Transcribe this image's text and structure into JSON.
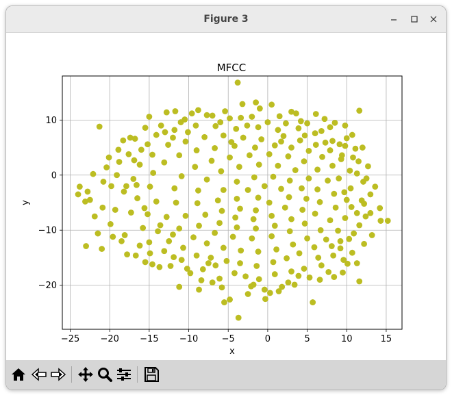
{
  "window": {
    "title": "Figure 3"
  },
  "toolbar": {
    "tools": [
      "home-icon",
      "back-icon",
      "forward-icon",
      "pan-icon",
      "zoom-icon",
      "configure-subplots-icon",
      "save-icon"
    ]
  },
  "colors": {
    "points": "#bcbd22",
    "grid": "#b0b0b0",
    "titlebar": "#ebebeb",
    "toolbar": "#d6d6d6"
  },
  "chart_data": {
    "type": "scatter",
    "title": "MFCC",
    "xlabel": "x",
    "ylabel": "y",
    "xlim": [
      -26,
      17
    ],
    "ylim": [
      -28,
      18
    ],
    "xticks": [
      -25,
      -20,
      -15,
      -10,
      -5,
      0,
      5,
      10,
      15
    ],
    "yticks": [
      -20,
      -10,
      0,
      10
    ],
    "grid": true,
    "series": [
      {
        "color": "#bcbd22",
        "points": [
          [
            -3.8,
            16.8
          ],
          [
            -21.3,
            8.8
          ],
          [
            11.6,
            11.7
          ],
          [
            -11.7,
            11.6
          ],
          [
            -12.8,
            11.4
          ],
          [
            -8.8,
            11.8
          ],
          [
            -3.2,
            12.9
          ],
          [
            -1.5,
            13.2
          ],
          [
            0.5,
            12.8
          ],
          [
            3.6,
            11.2
          ],
          [
            6.1,
            11.1
          ],
          [
            -15.5,
            8.6
          ],
          [
            -13.5,
            9.0
          ],
          [
            -10.5,
            10.1
          ],
          [
            -7.0,
            10.8
          ],
          [
            -4.8,
            10.3
          ],
          [
            -2.0,
            10.6
          ],
          [
            1.5,
            10.7
          ],
          [
            4.2,
            9.8
          ],
          [
            8.5,
            9.5
          ],
          [
            10.7,
            7.3
          ],
          [
            -16.8,
            6.6
          ],
          [
            -20.4,
            1.4
          ],
          [
            -23.8,
            -2.1
          ],
          [
            -24.0,
            -3.5
          ],
          [
            -23.1,
            -4.8
          ],
          [
            -22.5,
            -4.5
          ],
          [
            -20.8,
            -1.2
          ],
          [
            -19.8,
            -2.0
          ],
          [
            -21.9,
            -7.5
          ],
          [
            -21.5,
            -10.6
          ],
          [
            -23.0,
            -12.9
          ],
          [
            -21.0,
            -13.4
          ],
          [
            -19.6,
            -11.2
          ],
          [
            -18.5,
            -12.0
          ],
          [
            -17.8,
            -14.4
          ],
          [
            -16.7,
            -14.6
          ],
          [
            -15.5,
            -15.8
          ],
          [
            -14.6,
            -16.2
          ],
          [
            -13.7,
            -16.7
          ],
          [
            -12.3,
            -16.5
          ],
          [
            -10.2,
            -17.0
          ],
          [
            -9.8,
            -17.8
          ],
          [
            -11.2,
            -20.3
          ],
          [
            -8.7,
            -20.8
          ],
          [
            -7.0,
            -19.5
          ],
          [
            -5.8,
            -20.4
          ],
          [
            -4.8,
            -22.6
          ],
          [
            -5.5,
            -23.1
          ],
          [
            -3.7,
            -25.9
          ],
          [
            -2.1,
            -20.2
          ],
          [
            -0.4,
            -20.8
          ],
          [
            -0.3,
            -22.5
          ],
          [
            0.3,
            -21.4
          ],
          [
            1.4,
            -21.1
          ],
          [
            2.6,
            -19.5
          ],
          [
            3.4,
            -19.9
          ],
          [
            5.7,
            -23.1
          ],
          [
            6.6,
            -19.0
          ],
          [
            8.4,
            -18.5
          ],
          [
            9.5,
            -17.7
          ],
          [
            11.6,
            -19.3
          ],
          [
            10.7,
            -14.1
          ],
          [
            11.3,
            -16.0
          ],
          [
            12.2,
            -12.5
          ],
          [
            13.2,
            -10.9
          ],
          [
            14.3,
            -8.3
          ],
          [
            15.2,
            -8.3
          ],
          [
            14.2,
            -6.0
          ],
          [
            13.0,
            -6.9
          ],
          [
            12.2,
            -5.2
          ],
          [
            13.0,
            -3.5
          ],
          [
            12.1,
            -1.2
          ],
          [
            11.3,
            0.3
          ],
          [
            11.5,
            2.5
          ],
          [
            10.8,
            3.2
          ],
          [
            9.8,
            5.3
          ],
          [
            9.1,
            5.6
          ],
          [
            6.8,
            8.0
          ],
          [
            3.9,
            8.5
          ],
          [
            1.3,
            8.2
          ],
          [
            -1.2,
            8.7
          ],
          [
            -4.0,
            8.4
          ],
          [
            -6.6,
            8.9
          ],
          [
            -9.1,
            9.0
          ],
          [
            -11.8,
            8.2
          ],
          [
            -14.1,
            7.3
          ],
          [
            -16.0,
            4.6
          ],
          [
            -17.6,
            3.8
          ],
          [
            -18.8,
            2.4
          ],
          [
            -19.1,
            0.0
          ],
          [
            -18.2,
            -3.0
          ],
          [
            -17.3,
            -6.8
          ],
          [
            -15.8,
            -9.6
          ],
          [
            -15.0,
            -12.2
          ],
          [
            -13.1,
            -13.8
          ],
          [
            -11.9,
            -14.9
          ],
          [
            -10.9,
            -15.4
          ],
          [
            -8.2,
            -17.1
          ],
          [
            -6.6,
            -16.4
          ],
          [
            -4.2,
            -17.8
          ],
          [
            -2.8,
            -18.4
          ],
          [
            -1.1,
            -18.9
          ],
          [
            0.9,
            -18.0
          ],
          [
            3.0,
            -17.5
          ],
          [
            4.6,
            -17.0
          ],
          [
            6.8,
            -16.4
          ],
          [
            8.3,
            -14.6
          ],
          [
            9.2,
            -13.3
          ],
          [
            10.3,
            -11.6
          ],
          [
            11.6,
            -9.1
          ],
          [
            12.4,
            -7.5
          ],
          [
            11.9,
            -4.6
          ],
          [
            10.5,
            -2.4
          ],
          [
            10.4,
            0.8
          ],
          [
            9.3,
            2.9
          ],
          [
            7.9,
            4.5
          ],
          [
            6.1,
            5.5
          ],
          [
            4.1,
            6.3
          ],
          [
            2.0,
            7.1
          ],
          [
            -0.8,
            6.5
          ],
          [
            -3.1,
            6.8
          ],
          [
            -5.6,
            7.2
          ],
          [
            -8.0,
            6.9
          ],
          [
            -10.4,
            6.1
          ],
          [
            -12.6,
            5.5
          ],
          [
            -14.6,
            3.7
          ],
          [
            -16.2,
            1.9
          ],
          [
            -17.0,
            -0.7
          ],
          [
            -16.5,
            -4.2
          ],
          [
            -15.2,
            -7.1
          ],
          [
            -13.9,
            -10.2
          ],
          [
            -12.5,
            -12.0
          ],
          [
            -10.7,
            -13.2
          ],
          [
            -9.0,
            -14.6
          ],
          [
            -7.2,
            -15.0
          ],
          [
            -5.2,
            -15.6
          ],
          [
            -3.5,
            -16.0
          ],
          [
            -1.4,
            -16.5
          ],
          [
            0.7,
            -15.8
          ],
          [
            2.4,
            -15.1
          ],
          [
            4.0,
            -14.2
          ],
          [
            5.9,
            -13.1
          ],
          [
            7.4,
            -11.7
          ],
          [
            8.9,
            -10.1
          ],
          [
            9.8,
            -7.8
          ],
          [
            10.6,
            -5.8
          ],
          [
            9.7,
            -3.1
          ],
          [
            9.0,
            -0.6
          ],
          [
            8.2,
            1.7
          ],
          [
            6.9,
            3.3
          ],
          [
            5.2,
            4.4
          ],
          [
            3.0,
            5.0
          ],
          [
            0.9,
            5.4
          ],
          [
            -1.6,
            5.0
          ],
          [
            -4.2,
            5.3
          ],
          [
            -6.7,
            4.9
          ],
          [
            -9.0,
            4.5
          ],
          [
            -11.2,
            3.6
          ],
          [
            -13.1,
            2.3
          ],
          [
            -14.5,
            0.4
          ],
          [
            -14.9,
            -2.1
          ],
          [
            -14.1,
            -4.8
          ],
          [
            -12.8,
            -7.6
          ],
          [
            -11.2,
            -9.7
          ],
          [
            -9.4,
            -11.3
          ],
          [
            -7.7,
            -12.4
          ],
          [
            -5.6,
            -13.2
          ],
          [
            -3.4,
            -13.7
          ],
          [
            -1.2,
            -13.9
          ],
          [
            1.1,
            -13.5
          ],
          [
            3.2,
            -12.6
          ],
          [
            5.0,
            -11.5
          ],
          [
            6.7,
            -10.0
          ],
          [
            7.9,
            -8.2
          ],
          [
            8.6,
            -5.9
          ],
          [
            8.4,
            -3.4
          ],
          [
            7.6,
            -1.0
          ],
          [
            6.3,
            1.0
          ],
          [
            4.6,
            2.5
          ],
          [
            2.6,
            3.4
          ],
          [
            0.2,
            3.8
          ],
          [
            -2.3,
            3.6
          ],
          [
            -4.8,
            3.2
          ],
          [
            -7.1,
            2.6
          ],
          [
            -9.2,
            1.5
          ],
          [
            -10.9,
            -0.2
          ],
          [
            -11.8,
            -2.4
          ],
          [
            -11.6,
            -5.0
          ],
          [
            -10.4,
            -7.4
          ],
          [
            -8.7,
            -9.2
          ],
          [
            -6.7,
            -10.5
          ],
          [
            -4.4,
            -11.2
          ],
          [
            -2.0,
            -11.5
          ],
          [
            0.5,
            -11.1
          ],
          [
            2.8,
            -10.2
          ],
          [
            4.7,
            -8.8
          ],
          [
            6.0,
            -7.0
          ],
          [
            6.6,
            -4.9
          ],
          [
            6.3,
            -2.6
          ],
          [
            5.2,
            -0.6
          ],
          [
            3.5,
            0.9
          ],
          [
            1.3,
            1.7
          ],
          [
            -1.1,
            1.9
          ],
          [
            -3.6,
            1.5
          ],
          [
            -5.9,
            0.7
          ],
          [
            -7.7,
            -0.8
          ],
          [
            -8.8,
            -2.8
          ],
          [
            -8.9,
            -5.1
          ],
          [
            -7.9,
            -7.2
          ],
          [
            -6.1,
            -8.7
          ],
          [
            -3.9,
            -9.5
          ],
          [
            -1.5,
            -9.7
          ],
          [
            0.9,
            -9.2
          ],
          [
            3.0,
            -8.0
          ],
          [
            4.4,
            -6.3
          ],
          [
            4.9,
            -4.3
          ],
          [
            4.3,
            -2.4
          ],
          [
            2.8,
            -1.0
          ],
          [
            0.7,
            -0.3
          ],
          [
            -1.7,
            -0.4
          ],
          [
            -3.9,
            -1.2
          ],
          [
            -5.6,
            -2.7
          ],
          [
            -6.3,
            -4.6
          ],
          [
            -5.8,
            -6.5
          ],
          [
            -4.1,
            -7.7
          ],
          [
            -1.8,
            -8.0
          ],
          [
            0.5,
            -7.4
          ],
          [
            2.2,
            -5.9
          ],
          [
            2.7,
            -4.0
          ],
          [
            1.7,
            -2.5
          ],
          [
            -0.4,
            -2.0
          ],
          [
            -2.5,
            -2.7
          ],
          [
            -3.9,
            -4.3
          ],
          [
            -3.5,
            -6.1
          ],
          [
            -1.5,
            -6.4
          ],
          [
            0.2,
            -5.0
          ],
          [
            -1.2,
            -4.1
          ],
          [
            -18.9,
            4.6
          ],
          [
            -17.4,
            6.8
          ],
          [
            -13.0,
            7.8
          ],
          [
            -9.6,
            11.2
          ],
          [
            -5.4,
            11.6
          ],
          [
            -1.0,
            12.1
          ],
          [
            3.0,
            11.5
          ],
          [
            7.2,
            10.2
          ],
          [
            9.8,
            9.0
          ],
          [
            12.0,
            5.0
          ],
          [
            12.7,
            1.6
          ],
          [
            13.6,
            -2.1
          ],
          [
            -22.8,
            -3.0
          ],
          [
            -20.9,
            -5.9
          ],
          [
            -19.9,
            -8.9
          ],
          [
            -18.1,
            -10.9
          ],
          [
            -16.2,
            -12.8
          ],
          [
            -6.1,
            -18.8
          ],
          [
            -2.5,
            -21.6
          ],
          [
            1.8,
            -20.3
          ],
          [
            5.3,
            -18.6
          ],
          [
            7.7,
            -17.6
          ],
          [
            10.1,
            -16.1
          ],
          [
            -22.1,
            0.2
          ],
          [
            -20.1,
            3.2
          ],
          [
            -18.3,
            6.3
          ],
          [
            -15.0,
            10.6
          ],
          [
            -11.0,
            9.6
          ],
          [
            -7.7,
            10.9
          ],
          [
            -3.4,
            10.4
          ],
          [
            0.0,
            9.6
          ],
          [
            5.0,
            9.4
          ],
          [
            7.9,
            8.7
          ],
          [
            10.0,
            6.7
          ],
          [
            11.1,
            4.8
          ],
          [
            12.5,
            -0.6
          ],
          [
            11.3,
            -6.9
          ],
          [
            9.6,
            -15.4
          ],
          [
            -14.9,
            -14.2
          ],
          [
            -8.4,
            -19.1
          ],
          [
            -1.8,
            -19.9
          ],
          [
            3.9,
            -18.3
          ],
          [
            -19.3,
            -6.3
          ],
          [
            -17.9,
            -2.0
          ],
          [
            -16.9,
            2.7
          ],
          [
            -10.1,
            7.8
          ],
          [
            -6.0,
            9.6
          ],
          [
            -2.6,
            9.0
          ],
          [
            2.3,
            9.4
          ],
          [
            6.0,
            7.6
          ],
          [
            8.2,
            6.2
          ],
          [
            10.9,
            -10.6
          ],
          [
            8.1,
            -12.9
          ],
          [
            -13.6,
            -9.1
          ],
          [
            -15.6,
            -6.0
          ],
          [
            -16.6,
            -1.8
          ],
          [
            -15.2,
            5.6
          ],
          [
            -12.0,
            6.8
          ],
          [
            -4.6,
            6.0
          ],
          [
            1.7,
            6.1
          ],
          [
            4.7,
            7.2
          ],
          [
            7.3,
            5.9
          ],
          [
            9.4,
            3.6
          ],
          [
            10.0,
            -4.5
          ],
          [
            9.2,
            -12.0
          ],
          [
            6.4,
            -15.0
          ],
          [
            -7.5,
            -16.0
          ],
          [
            -12.0,
            -10.8
          ]
        ]
      }
    ]
  }
}
